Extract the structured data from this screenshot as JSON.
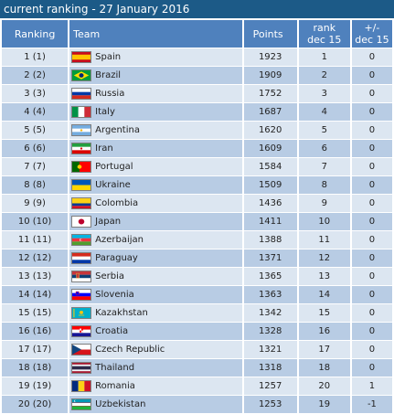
{
  "title": "current ranking - 27 January 2016",
  "headers": {
    "ranking": "Ranking",
    "team": "Team",
    "points": "Points",
    "rank_dec_line1": "rank",
    "rank_dec_line2": "dec 15",
    "diff_line1": "+/-",
    "diff_line2": "dec 15"
  },
  "rows": [
    {
      "ranking": "1 (1)",
      "team": "Spain",
      "flag": "spain-flag-icon",
      "points": "1923",
      "rank_dec": "1",
      "diff": "0"
    },
    {
      "ranking": "2 (2)",
      "team": "Brazil",
      "flag": "brazil-flag-icon",
      "points": "1909",
      "rank_dec": "2",
      "diff": "0"
    },
    {
      "ranking": "3 (3)",
      "team": "Russia",
      "flag": "russia-flag-icon",
      "points": "1752",
      "rank_dec": "3",
      "diff": "0"
    },
    {
      "ranking": "4 (4)",
      "team": "Italy",
      "flag": "italy-flag-icon",
      "points": "1687",
      "rank_dec": "4",
      "diff": "0"
    },
    {
      "ranking": "5 (5)",
      "team": "Argentina",
      "flag": "argentina-flag-icon",
      "points": "1620",
      "rank_dec": "5",
      "diff": "0"
    },
    {
      "ranking": "6 (6)",
      "team": "Iran",
      "flag": "iran-flag-icon",
      "points": "1609",
      "rank_dec": "6",
      "diff": "0"
    },
    {
      "ranking": "7 (7)",
      "team": "Portugal",
      "flag": "portugal-flag-icon",
      "points": "1584",
      "rank_dec": "7",
      "diff": "0"
    },
    {
      "ranking": "8 (8)",
      "team": "Ukraine",
      "flag": "ukraine-flag-icon",
      "points": "1509",
      "rank_dec": "8",
      "diff": "0"
    },
    {
      "ranking": "9 (9)",
      "team": "Colombia",
      "flag": "colombia-flag-icon",
      "points": "1436",
      "rank_dec": "9",
      "diff": "0"
    },
    {
      "ranking": "10 (10)",
      "team": "Japan",
      "flag": "japan-flag-icon",
      "points": "1411",
      "rank_dec": "10",
      "diff": "0"
    },
    {
      "ranking": "11 (11)",
      "team": "Azerbaijan",
      "flag": "azerbaijan-flag-icon",
      "points": "1388",
      "rank_dec": "11",
      "diff": "0"
    },
    {
      "ranking": "12 (12)",
      "team": "Paraguay",
      "flag": "paraguay-flag-icon",
      "points": "1371",
      "rank_dec": "12",
      "diff": "0"
    },
    {
      "ranking": "13 (13)",
      "team": "Serbia",
      "flag": "serbia-flag-icon",
      "points": "1365",
      "rank_dec": "13",
      "diff": "0"
    },
    {
      "ranking": "14 (14)",
      "team": "Slovenia",
      "flag": "slovenia-flag-icon",
      "points": "1363",
      "rank_dec": "14",
      "diff": "0"
    },
    {
      "ranking": "15 (15)",
      "team": "Kazakhstan",
      "flag": "kazakhstan-flag-icon",
      "points": "1342",
      "rank_dec": "15",
      "diff": "0"
    },
    {
      "ranking": "16 (16)",
      "team": "Croatia",
      "flag": "croatia-flag-icon",
      "points": "1328",
      "rank_dec": "16",
      "diff": "0"
    },
    {
      "ranking": "17 (17)",
      "team": "Czech Republic",
      "flag": "czech-republic-flag-icon",
      "points": "1321",
      "rank_dec": "17",
      "diff": "0"
    },
    {
      "ranking": "18 (18)",
      "team": "Thailand",
      "flag": "thailand-flag-icon",
      "points": "1318",
      "rank_dec": "18",
      "diff": "0"
    },
    {
      "ranking": "19 (19)",
      "team": "Romania",
      "flag": "romania-flag-icon",
      "points": "1257",
      "rank_dec": "20",
      "diff": "1"
    },
    {
      "ranking": "20 (20)",
      "team": "Uzbekistan",
      "flag": "uzbekistan-flag-icon",
      "points": "1253",
      "rank_dec": "19",
      "diff": "-1"
    }
  ],
  "colors": {
    "title_bg": "#1c5a87",
    "header_bg": "#4f81bd",
    "row_odd": "#dce6f1",
    "row_even": "#b8cce4"
  }
}
